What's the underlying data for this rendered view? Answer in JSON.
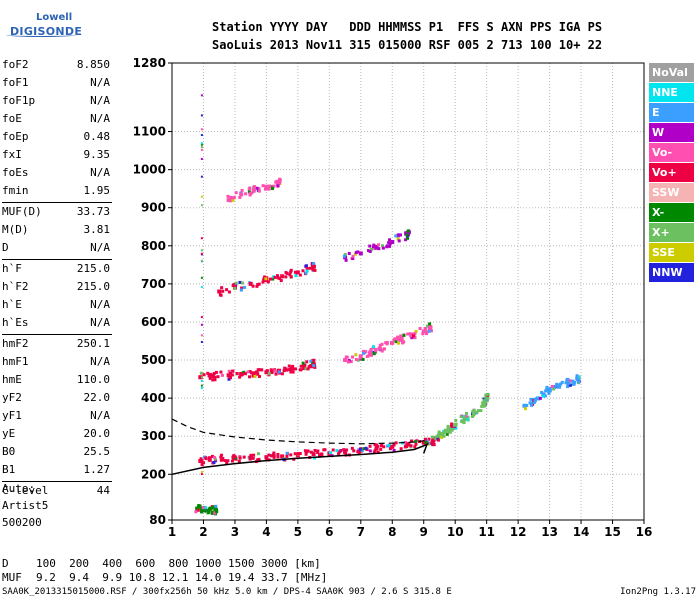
{
  "logo": {
    "brand": "Lowell",
    "product": "DIGISONDE"
  },
  "header": {
    "line1": "Station YYYY DAY   DDD HHMMSS P1  FFS S AXN PPS IGA PS",
    "line2": "SaoLuis 2013 Nov11 315 015000 RSF 005 2 713 100 10+ 22"
  },
  "params": [
    {
      "k": "foF2",
      "v": "8.850"
    },
    {
      "k": "foF1",
      "v": "N/A"
    },
    {
      "k": "foF1p",
      "v": "N/A"
    },
    {
      "k": "foE",
      "v": "N/A"
    },
    {
      "k": "foEp",
      "v": "0.48"
    },
    {
      "k": "fxI",
      "v": "9.35"
    },
    {
      "k": "foEs",
      "v": "N/A"
    },
    {
      "k": "fmin",
      "v": "1.95"
    },
    {
      "k": "MUF(D)",
      "v": "33.73",
      "sep": true
    },
    {
      "k": "M(D)",
      "v": "3.81"
    },
    {
      "k": "D",
      "v": "N/A"
    },
    {
      "k": "h`F",
      "v": "215.0",
      "sep": true
    },
    {
      "k": "h`F2",
      "v": "215.0"
    },
    {
      "k": "h`E",
      "v": "N/A"
    },
    {
      "k": "h`Es",
      "v": "N/A"
    },
    {
      "k": "hmF2",
      "v": "250.1",
      "sep": true
    },
    {
      "k": "hmF1",
      "v": "N/A"
    },
    {
      "k": "hmE",
      "v": "110.0"
    },
    {
      "k": "yF2",
      "v": "22.0"
    },
    {
      "k": "yF1",
      "v": "N/A"
    },
    {
      "k": "yE",
      "v": "20.0"
    },
    {
      "k": "B0",
      "v": "25.5"
    },
    {
      "k": "B1",
      "v": "1.27"
    },
    {
      "k": "C-level",
      "v": "44",
      "sep": true
    }
  ],
  "auto": {
    "l1": "Auto:",
    "l2": "Artist5",
    "l3": "500200"
  },
  "muf_table": {
    "d_label": "D",
    "d_values": "100  200  400  600  800 1000 1500 3000 [km]",
    "m_label": "MUF",
    "m_values": "9.2  9.4  9.9 10.8 12.1 14.0 19.4 33.7 [MHz]"
  },
  "footer": {
    "left": "SAA0K_2013315015000.RSF / 300fx256h 50 kHz 5.0 km / DPS-4 SAA0K 903 / 2.6 S 315.8 E",
    "right": "Ion2Png 1.3.17"
  },
  "colors": {
    "NoVal": "#a0a0a0",
    "NNE": "#00e5ee",
    "E": "#3a9fff",
    "W": "#b000c8",
    "Vo-": "#ff4fb0",
    "Vo+": "#ee0044",
    "SSW": "#f5b3b3",
    "X-": "#008800",
    "X+": "#6cc060",
    "SSE": "#cccc00",
    "NNW": "#2222dd"
  },
  "legend": [
    "NoVal",
    "NNE",
    "E",
    "W",
    "Vo-",
    "Vo+",
    "SSW",
    "X-",
    "X+",
    "SSE",
    "NNW"
  ],
  "chart_data": {
    "type": "scatter",
    "xlabel": "",
    "ylabel": "",
    "xlim": [
      1,
      16
    ],
    "ylim": [
      80,
      1280
    ],
    "xticks": [
      1,
      2,
      3,
      4,
      5,
      6,
      7,
      8,
      9,
      10,
      11,
      12,
      13,
      14,
      15,
      16
    ],
    "yticks": [
      80,
      200,
      300,
      400,
      500,
      600,
      700,
      800,
      900,
      1000,
      1100,
      1280
    ],
    "traces": [
      {
        "name": "O-trace low",
        "color": "Vo+",
        "x": [
          1.9,
          2.2,
          2.6,
          3.0,
          3.5,
          4.0,
          4.5,
          5.0,
          5.5,
          6.0,
          6.5,
          7.0,
          7.5,
          8.0,
          8.5,
          9.0,
          9.3
        ],
        "y": [
          235,
          238,
          240,
          242,
          243,
          245,
          247,
          250,
          253,
          255,
          258,
          262,
          268,
          272,
          278,
          283,
          288
        ]
      },
      {
        "name": "X-trace",
        "color": "X+",
        "x": [
          9.4,
          9.6,
          9.8,
          10.0,
          10.3,
          10.6,
          10.9,
          11.0
        ],
        "y": [
          295,
          305,
          318,
          330,
          345,
          360,
          380,
          400
        ]
      },
      {
        "name": "second hop",
        "color": "Vo+",
        "x": [
          1.9,
          2.3,
          2.8,
          3.2,
          3.6,
          4.0,
          4.4,
          4.8,
          5.2,
          5.5
        ],
        "y": [
          455,
          458,
          460,
          462,
          465,
          468,
          472,
          478,
          485,
          490
        ]
      },
      {
        "name": "second hop b",
        "color": "Vo-",
        "x": [
          6.5,
          7.0,
          7.3,
          7.6,
          8.0,
          8.3,
          8.6,
          9.0,
          9.2
        ],
        "y": [
          500,
          510,
          520,
          530,
          545,
          555,
          565,
          575,
          585
        ]
      },
      {
        "name": "third hop",
        "color": "Vo+",
        "x": [
          2.5,
          3.0,
          3.5,
          4.0,
          4.5,
          5.0,
          5.5
        ],
        "y": [
          680,
          690,
          700,
          710,
          720,
          730,
          745
        ]
      },
      {
        "name": "third hop b",
        "color": "W",
        "x": [
          6.5,
          7.0,
          7.5,
          8.0,
          8.5
        ],
        "y": [
          770,
          780,
          795,
          810,
          830
        ]
      },
      {
        "name": "fourth hop",
        "color": "Vo-",
        "x": [
          2.8,
          3.2,
          3.6,
          4.0,
          4.4
        ],
        "y": [
          920,
          935,
          945,
          955,
          965
        ]
      },
      {
        "name": "spread F",
        "color": "E",
        "x": [
          12.2,
          12.5,
          12.8,
          13.0,
          13.3,
          13.6,
          13.9
        ],
        "y": [
          380,
          395,
          410,
          420,
          430,
          440,
          450
        ]
      },
      {
        "name": "low echoes",
        "color": "X-",
        "x": [
          1.8,
          2.0,
          2.2,
          2.4
        ],
        "y": [
          110,
          105,
          108,
          106
        ]
      }
    ],
    "profile_solid": {
      "x": [
        1,
        2,
        3,
        4,
        5,
        6,
        7,
        8,
        8.7,
        9.1,
        9.0
      ],
      "y": [
        200,
        218,
        228,
        236,
        242,
        247,
        252,
        258,
        265,
        278,
        255
      ]
    },
    "profile_dashed": {
      "x": [
        1,
        1.5,
        2,
        3,
        4,
        5,
        6,
        7,
        8,
        8.8,
        9.1
      ],
      "y": [
        345,
        325,
        310,
        298,
        290,
        285,
        282,
        280,
        282,
        285,
        290
      ]
    }
  }
}
